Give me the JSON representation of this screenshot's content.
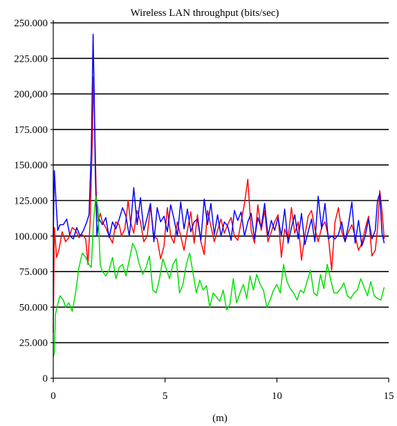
{
  "chart_data": {
    "type": "line",
    "title": "Wireless LAN throughput (bits/sec)",
    "xlabel": "(m)",
    "ylabel": "",
    "xlim": [
      0,
      15
    ],
    "ylim": [
      0,
      250000
    ],
    "xticks": [
      0,
      5,
      10,
      15
    ],
    "xtick_labels": [
      "0",
      "5",
      "10",
      "15"
    ],
    "yticks": [
      0,
      25000,
      50000,
      75000,
      100000,
      125000,
      150000,
      175000,
      200000,
      225000,
      250000
    ],
    "ytick_labels": [
      "0",
      "25.000",
      "50.000",
      "75.000",
      "100.000",
      "125.000",
      "150.000",
      "175.000",
      "200,000",
      "225.000",
      "250.000"
    ],
    "grid": true,
    "legend": "none",
    "series": [
      {
        "color": "#ff0000",
        "x": [
          0,
          0.05,
          0.15,
          0.25,
          0.4,
          0.55,
          0.7,
          0.85,
          1.0,
          1.15,
          1.3,
          1.45,
          1.55,
          1.65,
          1.75,
          1.8,
          1.85,
          1.92,
          2.0,
          2.1,
          2.2,
          2.35,
          2.5,
          2.65,
          2.8,
          2.95,
          3.05,
          3.2,
          3.35,
          3.45,
          3.6,
          3.75,
          3.9,
          4.05,
          4.2,
          4.35,
          4.5,
          4.65,
          4.8,
          4.95,
          5.1,
          5.25,
          5.4,
          5.55,
          5.7,
          5.85,
          6.0,
          6.15,
          6.3,
          6.45,
          6.6,
          6.75,
          6.9,
          7.05,
          7.2,
          7.35,
          7.5,
          7.65,
          7.8,
          7.95,
          8.1,
          8.25,
          8.4,
          8.55,
          8.7,
          8.85,
          9.0,
          9.15,
          9.3,
          9.45,
          9.6,
          9.75,
          9.9,
          10.05,
          10.2,
          10.35,
          10.5,
          10.65,
          10.8,
          10.95,
          11.1,
          11.25,
          11.4,
          11.55,
          11.7,
          11.85,
          12.0,
          12.15,
          12.3,
          12.45,
          12.6,
          12.75,
          12.9,
          13.05,
          13.2,
          13.35,
          13.5,
          13.65,
          13.8,
          13.95,
          14.1,
          14.25,
          14.4,
          14.5,
          14.6,
          14.7,
          14.8
        ],
        "values": [
          32000,
          106000,
          85000,
          90000,
          103000,
          96000,
          99000,
          106000,
          104000,
          99000,
          101000,
          98000,
          80000,
          110000,
          170000,
          212000,
          180000,
          130000,
          110000,
          116000,
          110000,
          106000,
          100000,
          95000,
          110000,
          108000,
          100000,
          105000,
          125000,
          110000,
          102000,
          118000,
          110000,
          96000,
          100000,
          121000,
          100000,
          98000,
          84000,
          93000,
          120000,
          100000,
          95000,
          110000,
          100000,
          90000,
          104000,
          117000,
          95000,
          115000,
          96000,
          87000,
          118000,
          107000,
          96000,
          104000,
          112000,
          102000,
          108000,
          113000,
          100000,
          97000,
          110000,
          123000,
          140000,
          104000,
          95000,
          122000,
          104000,
          118000,
          96000,
          103000,
          110000,
          115000,
          85000,
          105000,
          98000,
          120000,
          102000,
          110000,
          83000,
          100000,
          114000,
          118000,
          105000,
          96000,
          106000,
          110000,
          100000,
          76000,
          110000,
          120000,
          103000,
          96000,
          103000,
          108000,
          100000,
          90000,
          95000,
          105000,
          114000,
          86000,
          90000,
          105000,
          132000,
          118000,
          98000
        ]
      },
      {
        "color": "#0000ff",
        "x": [
          0,
          0.05,
          0.12,
          0.2,
          0.3,
          0.45,
          0.6,
          0.75,
          0.9,
          1.05,
          1.2,
          1.35,
          1.5,
          1.6,
          1.7,
          1.78,
          1.83,
          1.88,
          1.95,
          2.05,
          2.2,
          2.35,
          2.5,
          2.65,
          2.8,
          2.95,
          3.1,
          3.25,
          3.4,
          3.5,
          3.6,
          3.75,
          3.9,
          4.05,
          4.2,
          4.35,
          4.5,
          4.65,
          4.8,
          4.95,
          5.1,
          5.25,
          5.4,
          5.55,
          5.7,
          5.85,
          6.0,
          6.15,
          6.3,
          6.45,
          6.6,
          6.75,
          6.9,
          7.05,
          7.2,
          7.35,
          7.5,
          7.65,
          7.8,
          7.95,
          8.1,
          8.25,
          8.4,
          8.55,
          8.7,
          8.85,
          9.0,
          9.15,
          9.3,
          9.45,
          9.6,
          9.75,
          9.9,
          10.05,
          10.2,
          10.35,
          10.5,
          10.65,
          10.8,
          10.95,
          11.1,
          11.25,
          11.4,
          11.55,
          11.7,
          11.85,
          12.0,
          12.15,
          12.3,
          12.45,
          12.6,
          12.75,
          12.9,
          13.05,
          13.2,
          13.35,
          13.5,
          13.65,
          13.8,
          13.95,
          14.1,
          14.25,
          14.4,
          14.5,
          14.6,
          14.7,
          14.8
        ],
        "values": [
          100000,
          146000,
          125000,
          104000,
          108000,
          108000,
          112000,
          100000,
          98000,
          106000,
          100000,
          104000,
          110000,
          115000,
          160000,
          242000,
          200000,
          145000,
          100000,
          112000,
          108000,
          113000,
          99000,
          110000,
          105000,
          112000,
          120000,
          114000,
          100000,
          115000,
          134000,
          108000,
          127000,
          104000,
          113000,
          123000,
          96000,
          120000,
          110000,
          114000,
          103000,
          122000,
          112000,
          100000,
          124000,
          105000,
          119000,
          103000,
          110000,
          112000,
          97000,
          126000,
          108000,
          123000,
          101000,
          115000,
          100000,
          110000,
          107000,
          97000,
          118000,
          111000,
          117000,
          100000,
          110000,
          116000,
          98000,
          113000,
          106000,
          123000,
          100000,
          111000,
          104000,
          113000,
          100000,
          119000,
          95000,
          106000,
          115000,
          98000,
          116000,
          94000,
          103000,
          112000,
          96000,
          128000,
          105000,
          123000,
          98000,
          100000,
          98000,
          101000,
          110000,
          96000,
          108000,
          124000,
          95000,
          111000,
          93000,
          100000,
          112000,
          98000,
          104000,
          125000,
          130000,
          102000,
          95000
        ]
      },
      {
        "color": "#00dd00",
        "x": [
          0,
          0.05,
          0.1,
          0.2,
          0.3,
          0.45,
          0.55,
          0.7,
          0.85,
          1.0,
          1.15,
          1.3,
          1.45,
          1.6,
          1.7,
          1.8,
          1.9,
          2.0,
          2.1,
          2.2,
          2.35,
          2.5,
          2.65,
          2.8,
          2.95,
          3.1,
          3.25,
          3.4,
          3.55,
          3.7,
          3.85,
          4.0,
          4.15,
          4.3,
          4.45,
          4.6,
          4.75,
          4.9,
          5.05,
          5.2,
          5.35,
          5.5,
          5.65,
          5.8,
          5.95,
          6.1,
          6.25,
          6.4,
          6.55,
          6.7,
          6.85,
          7.0,
          7.15,
          7.3,
          7.45,
          7.6,
          7.75,
          7.9,
          8.05,
          8.2,
          8.35,
          8.5,
          8.65,
          8.8,
          8.95,
          9.1,
          9.25,
          9.4,
          9.55,
          9.7,
          9.85,
          10.0,
          10.15,
          10.3,
          10.45,
          10.6,
          10.75,
          10.9,
          11.05,
          11.2,
          11.35,
          11.5,
          11.65,
          11.8,
          11.95,
          12.1,
          12.25,
          12.4,
          12.55,
          12.7,
          12.85,
          13.0,
          13.15,
          13.3,
          13.45,
          13.6,
          13.75,
          13.9,
          14.05,
          14.2,
          14.35,
          14.5,
          14.65,
          14.8
        ],
        "values": [
          15000,
          18000,
          45000,
          52000,
          58000,
          55000,
          50000,
          53000,
          47000,
          60000,
          78000,
          88000,
          85000,
          80000,
          78000,
          110000,
          128000,
          120000,
          80000,
          75000,
          72000,
          76000,
          85000,
          70000,
          78000,
          80000,
          72000,
          83000,
          95000,
          90000,
          80000,
          73000,
          78000,
          86000,
          62000,
          60000,
          70000,
          84000,
          77000,
          70000,
          80000,
          84000,
          60000,
          66000,
          80000,
          88000,
          74000,
          60000,
          69000,
          62000,
          65000,
          50000,
          60000,
          57000,
          54000,
          62000,
          48000,
          52000,
          70000,
          53000,
          60000,
          66000,
          56000,
          72000,
          62000,
          73000,
          66000,
          62000,
          50000,
          55000,
          62000,
          66000,
          60000,
          80000,
          68000,
          63000,
          60000,
          55000,
          62000,
          60000,
          68000,
          76000,
          60000,
          58000,
          73000,
          63000,
          80000,
          70000,
          60000,
          60000,
          63000,
          67000,
          58000,
          56000,
          60000,
          62000,
          70000,
          64000,
          58000,
          68000,
          58000,
          56000,
          55000,
          64000
        ]
      }
    ]
  }
}
